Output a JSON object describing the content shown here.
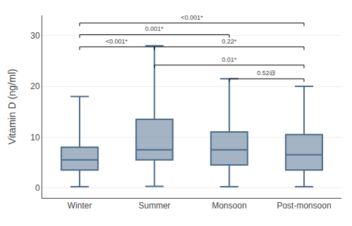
{
  "chart_data": {
    "type": "box",
    "categories": [
      "Winter",
      "Summer",
      "Monsoon",
      "Post-monsoon"
    ],
    "whislo": [
      0.2,
      0.3,
      0.2,
      0.2
    ],
    "q1": [
      3.5,
      5.5,
      4.5,
      3.5
    ],
    "med": [
      5.5,
      7.5,
      7.5,
      6.5
    ],
    "q3": [
      8.0,
      13.5,
      11.0,
      10.5
    ],
    "whishi": [
      18.0,
      28.0,
      21.5,
      20.0
    ],
    "color": "#4a6a8a",
    "ylabel": "Vitamin D (ng/ml)",
    "ylim": [
      -2,
      34
    ],
    "yticks": [
      0,
      10,
      20,
      30
    ],
    "grid": true,
    "annotations": [
      {
        "x1": "Winter",
        "x2": "Post-monsoon",
        "y": 32.5,
        "text": "<0.001*"
      },
      {
        "x1": "Winter",
        "x2": "Monsoon",
        "y": 30.2,
        "text": "0.001*"
      },
      {
        "x1": "Winter",
        "x2": "Summer",
        "y": 27.8,
        "text": "<0.001*"
      },
      {
        "x1": "Summer",
        "x2": "Post-monsoon",
        "y": 27.8,
        "text": "0.22*"
      },
      {
        "x1": "Summer",
        "x2": "Post-monsoon",
        "y": 24.2,
        "text": "0.01*"
      },
      {
        "x1": "Monsoon",
        "x2": "Post-monsoon",
        "y": 21.5,
        "text": "0.52@"
      }
    ]
  }
}
